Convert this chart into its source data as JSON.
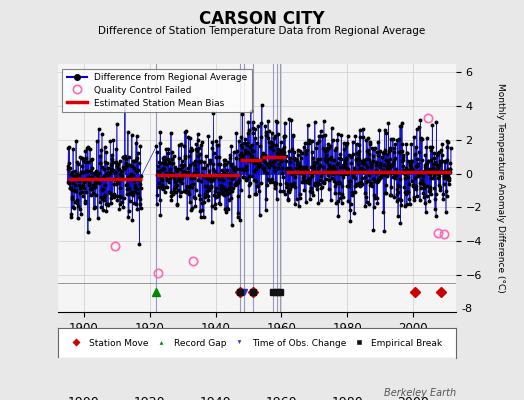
{
  "title": "CARSON CITY",
  "subtitle": "Difference of Station Temperature Data from Regional Average",
  "ylabel": "Monthly Temperature Anomaly Difference (°C)",
  "bg_color": "#e8e8e8",
  "plot_bg": "#f5f5f5",
  "xlim": [
    1892,
    2013
  ],
  "ylim": [
    -8.2,
    6.5
  ],
  "plot_ylim": [
    -6.5,
    6.5
  ],
  "yticks": [
    -6,
    -4,
    -2,
    0,
    2,
    4,
    6
  ],
  "xticks": [
    1900,
    1920,
    1940,
    1960,
    1980,
    2000
  ],
  "seed": 42,
  "segments": [
    {
      "start": 1895.0,
      "end": 1917.5,
      "bias": -0.3
    },
    {
      "start": 1922.0,
      "end": 1947.5,
      "bias": -0.1
    },
    {
      "start": 1947.5,
      "end": 1954.0,
      "bias": 0.8
    },
    {
      "start": 1954.0,
      "end": 1961.5,
      "bias": 1.0
    },
    {
      "start": 1961.5,
      "end": 2011.5,
      "bias": 0.1
    }
  ],
  "gap_start": 1917.5,
  "gap_end": 1922.0,
  "station_moves": [
    1947.3,
    1951.3,
    2000.5,
    2008.5
  ],
  "record_gap": [
    1922.0
  ],
  "time_obs_change": [
    1948.5
  ],
  "empirical_breaks": [
    1947.3,
    1951.5,
    1957.5,
    1958.5,
    1959.5
  ],
  "qc_failed_approx": [
    [
      1909.5,
      -4.3
    ],
    [
      1922.5,
      -5.9
    ],
    [
      1933.0,
      -5.2
    ],
    [
      2004.5,
      3.3
    ],
    [
      2007.5,
      -3.5
    ],
    [
      2009.5,
      -3.6
    ]
  ],
  "line_color": "#0000cc",
  "dot_color": "#000000",
  "bias_color": "#dd0000",
  "qc_color": "#ff69b4",
  "station_move_color": "#cc0000",
  "record_gap_color": "#008800",
  "time_obs_color": "#3333cc",
  "empirical_break_color": "#111111",
  "watermark": "Berkeley Earth",
  "noise_std": 1.2,
  "seasonal_amp": 0.5,
  "vline_color": "#9999bb",
  "symbol_y": -7.0,
  "annotation_vlines": [
    1922.0,
    1947.3,
    1948.5,
    1951.3,
    1957.5,
    1958.5,
    1959.5
  ]
}
